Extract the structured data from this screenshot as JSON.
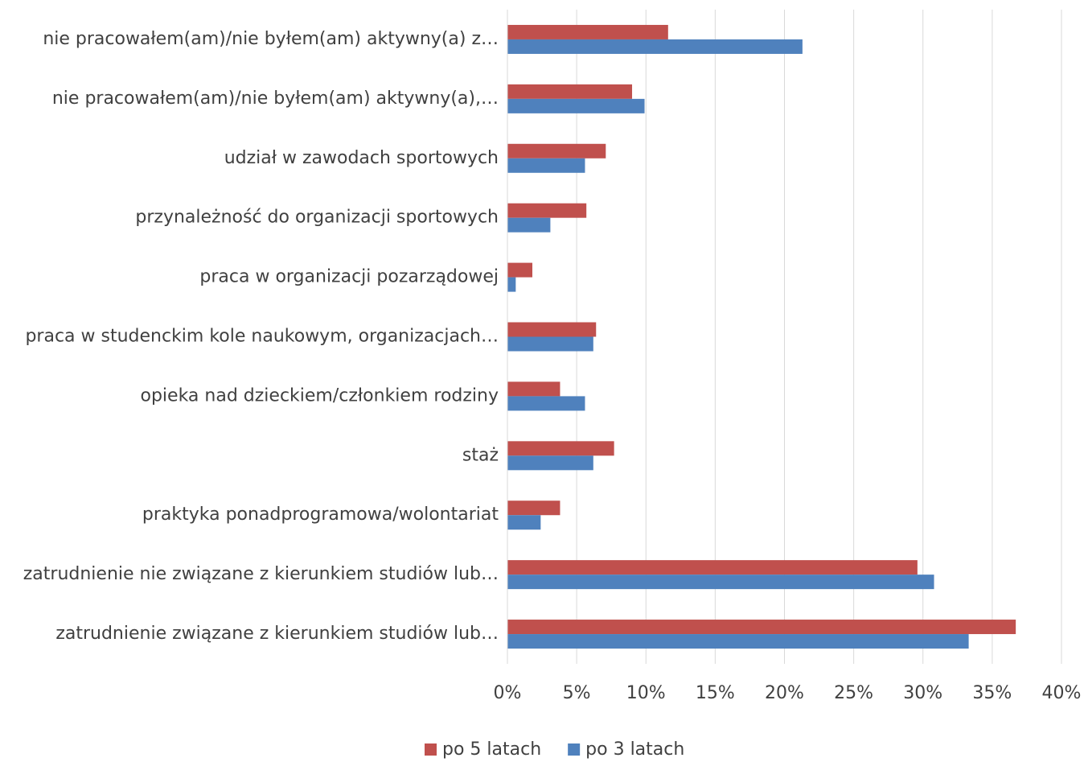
{
  "chart_data": {
    "type": "hbar",
    "categories": [
      "nie pracowałem(am)/nie byłem(am) aktywny(a) z…",
      "nie pracowałem(am)/nie byłem(am) aktywny(a),…",
      "udział w zawodach sportowych",
      "przynależność do organizacji sportowych",
      "praca w organizacji pozarządowej",
      "praca w studenckim kole naukowym, organizacjach…",
      "opieka nad dzieckiem/członkiem rodziny",
      "staż",
      "praktyka ponadprogramowa/wolontariat",
      "zatrudnienie nie związane z kierunkiem studiów lub…",
      "zatrudnienie związane z kierunkiem studiów lub…"
    ],
    "series": [
      {
        "name": "po 5 latach",
        "color": "#c0504d",
        "values": [
          11.6,
          9.0,
          7.1,
          5.7,
          1.8,
          6.4,
          3.8,
          7.7,
          3.8,
          29.6,
          36.7
        ]
      },
      {
        "name": "po 3 latach",
        "color": "#4f81bd",
        "values": [
          21.3,
          9.9,
          5.6,
          3.1,
          0.6,
          6.2,
          5.6,
          6.2,
          2.4,
          30.8,
          33.3
        ]
      }
    ],
    "xlim": [
      0,
      40
    ],
    "xticks": [
      {
        "value": 0,
        "label": "0%"
      },
      {
        "value": 5,
        "label": "5%"
      },
      {
        "value": 10,
        "label": "10%"
      },
      {
        "value": 15,
        "label": "15%"
      },
      {
        "value": 20,
        "label": "20%"
      },
      {
        "value": 25,
        "label": "25%"
      },
      {
        "value": 30,
        "label": "30%"
      },
      {
        "value": 35,
        "label": "35%"
      },
      {
        "value": 40,
        "label": "40%"
      }
    ],
    "grid": true,
    "legend": "bottom"
  }
}
